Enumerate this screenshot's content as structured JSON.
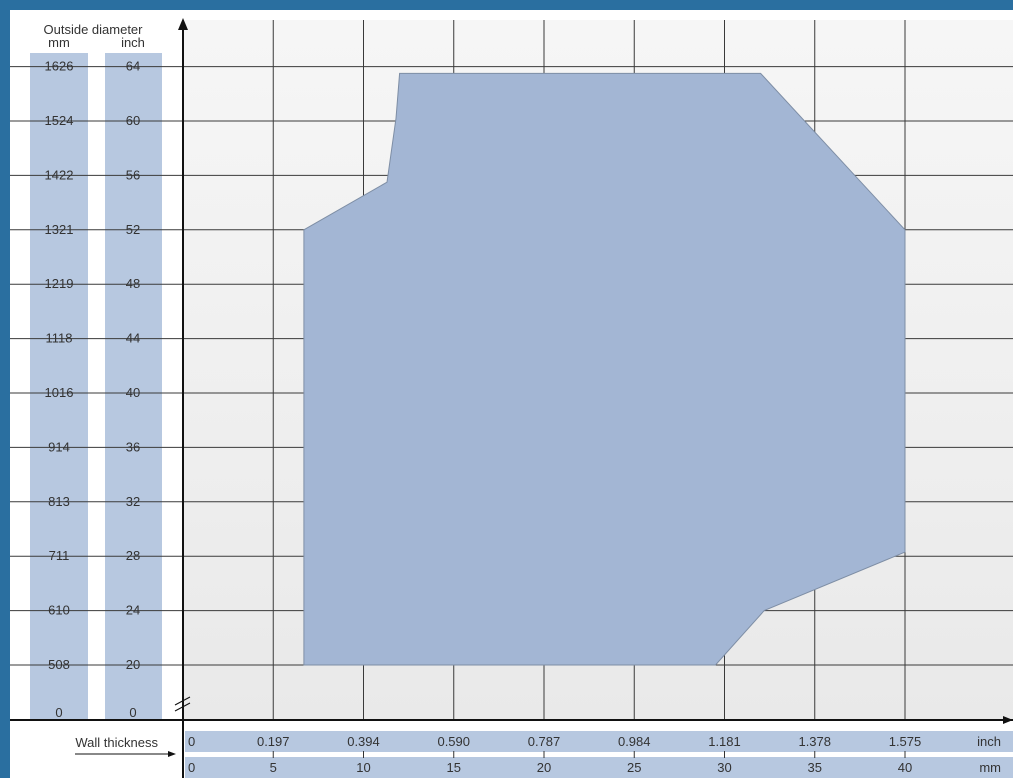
{
  "chart_data": {
    "type": "area",
    "title": "",
    "ylabel": "Outside diameter",
    "xlabel": "Wall thickness",
    "y_units": [
      "mm",
      "inch"
    ],
    "x_units": [
      "inch",
      "mm"
    ],
    "y_ticks_inch": [
      0,
      20,
      24,
      28,
      32,
      36,
      40,
      44,
      48,
      52,
      56,
      60,
      64
    ],
    "y_ticks_mm": [
      "0",
      "508",
      "610",
      "711",
      "813",
      "914",
      "1016",
      "1118",
      "1219",
      "1321",
      "1422",
      "1524",
      "1626"
    ],
    "x_ticks_mm": [
      0,
      5,
      10,
      15,
      20,
      25,
      30,
      35,
      40
    ],
    "x_ticks_inch": [
      "0",
      "0.197",
      "0.394",
      "0.590",
      "0.787",
      "0.984",
      "1.181",
      "1.378",
      "1.575"
    ],
    "xlim": [
      0,
      40
    ],
    "ylim": [
      20,
      64
    ],
    "grid": true,
    "y_axis_break": true,
    "series": [
      {
        "values": [
          [
            6.7,
            20
          ],
          [
            29.5,
            20
          ],
          [
            32.2,
            24
          ],
          [
            40,
            28.3
          ],
          [
            40,
            52
          ],
          [
            32.0,
            63.5
          ],
          [
            12.0,
            63.5
          ],
          [
            11.8,
            60.2
          ],
          [
            11.3,
            55.5
          ],
          [
            6.7,
            52
          ]
        ]
      }
    ],
    "colors": {
      "area_fill": "#a3b6d4",
      "area_stroke": "#7e8ea5",
      "tick_box": "#b7c8e0",
      "plot_bg": "#f1f1f1"
    }
  }
}
